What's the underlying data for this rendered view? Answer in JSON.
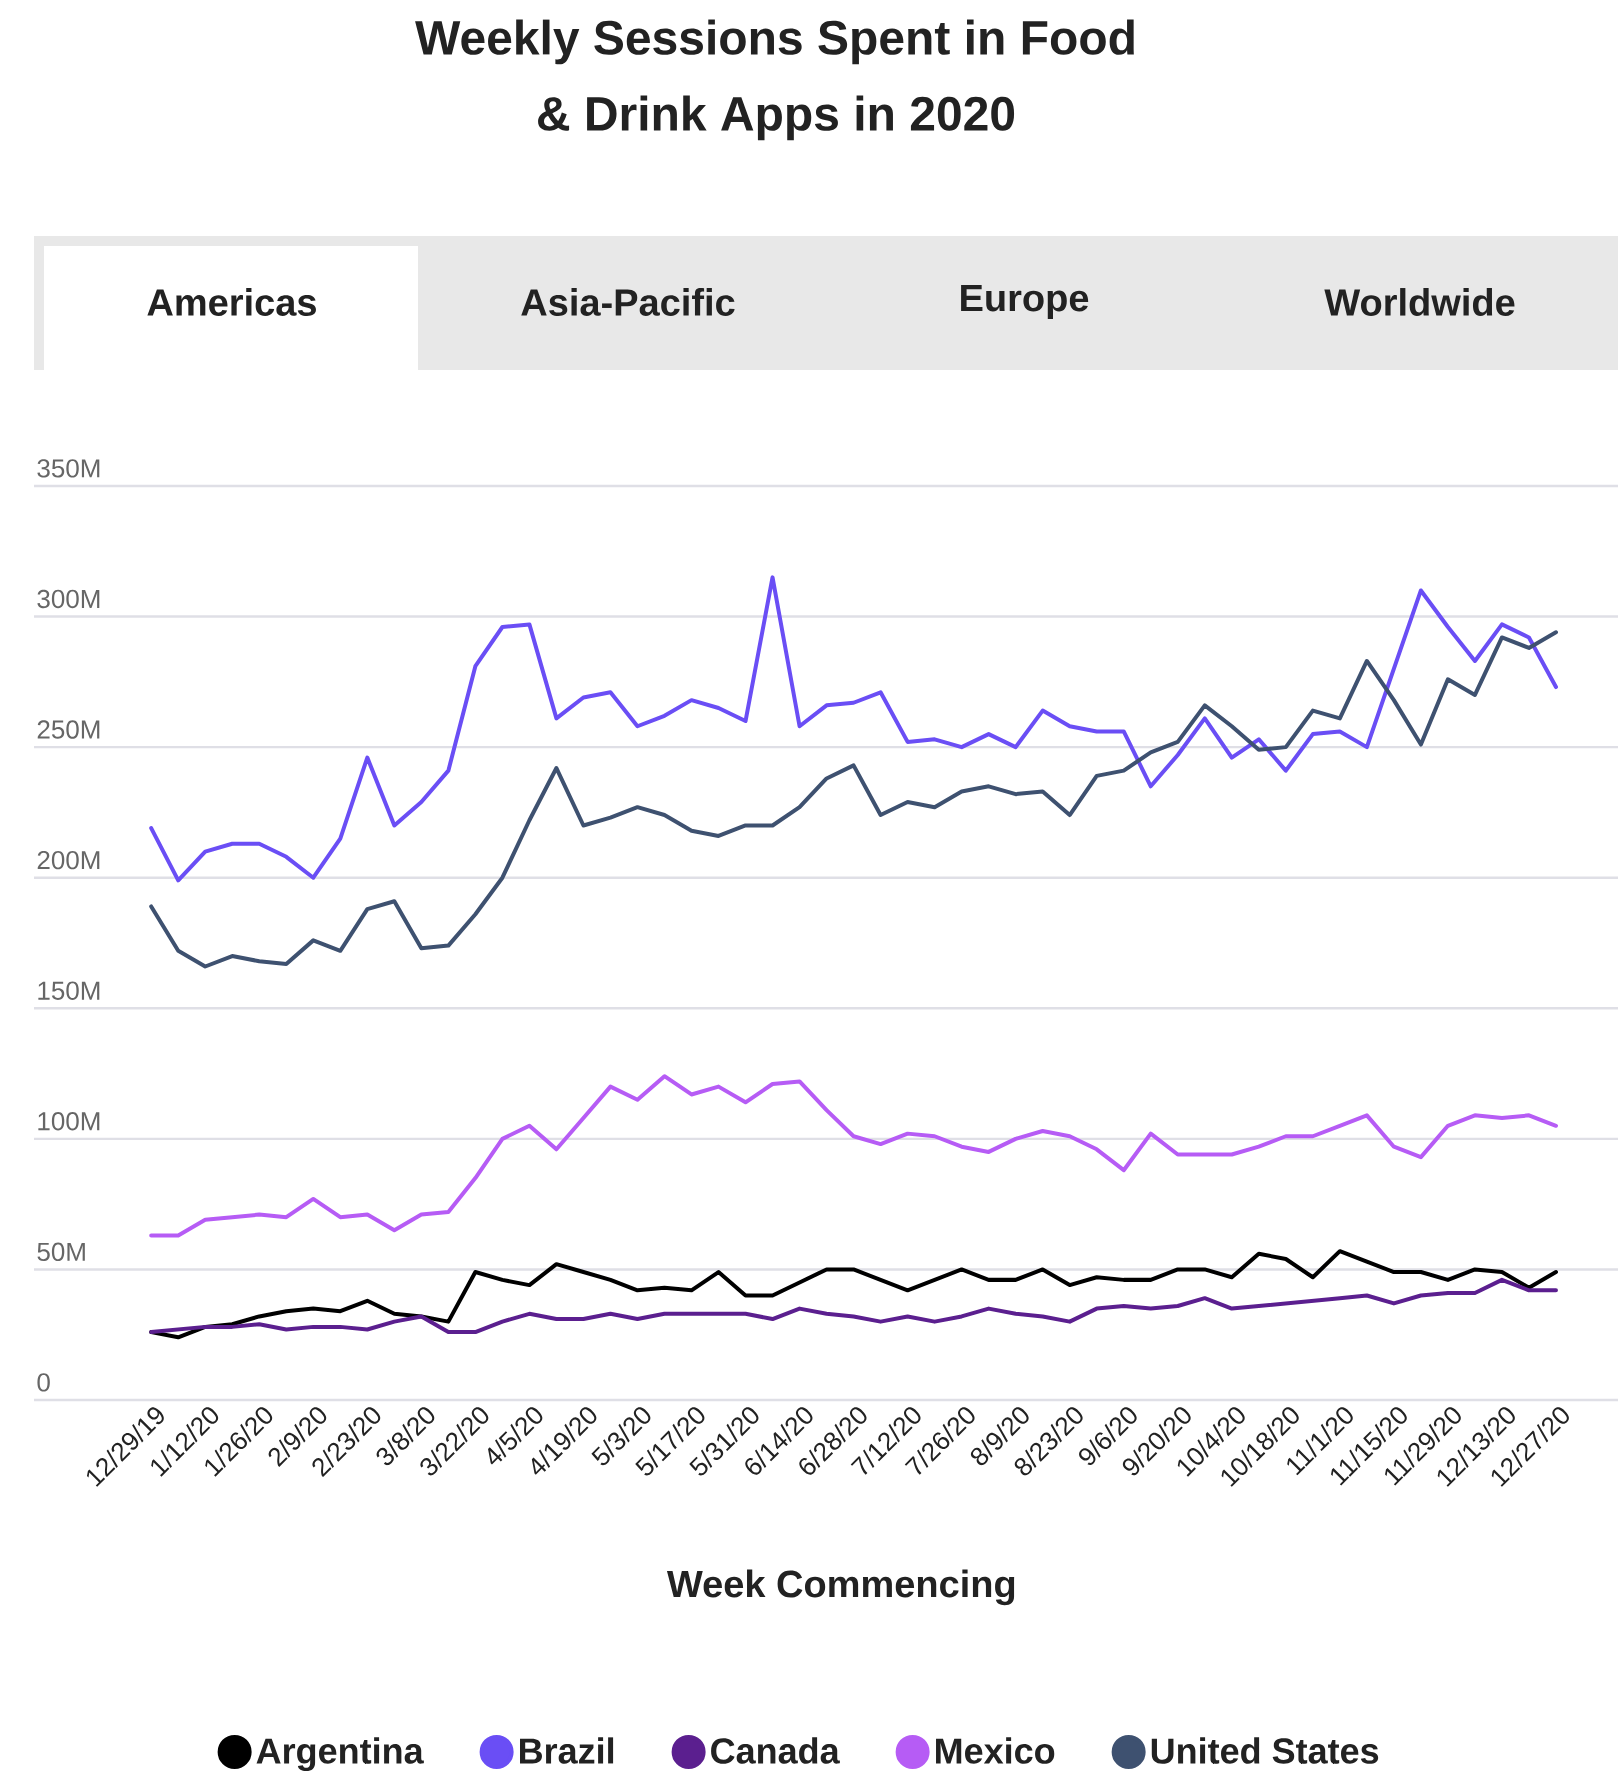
{
  "chart_data": {
    "type": "line",
    "title": "Weekly Sessions Spent in Food\n& Drink Apps in 2020",
    "xlabel": "Week Commencing",
    "annotations": [
      "Americas",
      "Asia-Pacific",
      "Europe",
      "Worldwide"
    ],
    "categories": [
      "12/29/19",
      null,
      "1/12/20",
      null,
      "1/26/20",
      null,
      "2/9/20",
      null,
      "2/23/20",
      null,
      "3/8/20",
      null,
      "3/22/20",
      null,
      "4/5/20",
      null,
      "4/19/20",
      null,
      "5/3/20",
      null,
      "5/17/20",
      null,
      "5/31/20",
      null,
      "6/14/20",
      null,
      "6/28/20",
      null,
      "7/12/20",
      null,
      "7/26/20",
      null,
      "8/9/20",
      null,
      "8/23/20",
      null,
      "9/6/20",
      null,
      "9/20/20",
      null,
      "10/4/20",
      null,
      "10/18/20",
      null,
      "11/1/20",
      null,
      "11/15/20",
      null,
      "11/29/20",
      null,
      "12/13/20",
      null,
      "12/27/20"
    ],
    "series": [
      {
        "name": "Argentina",
        "color": "#000000",
        "values": [
          26,
          24,
          28,
          29,
          32,
          34,
          35,
          34,
          38,
          33,
          32,
          30,
          49,
          46,
          44,
          52,
          49,
          46,
          42,
          43,
          42,
          49,
          40,
          40,
          45,
          50,
          50,
          46,
          42,
          46,
          50,
          46,
          46,
          50,
          44,
          47,
          46,
          46,
          50,
          50,
          47,
          56,
          54,
          47,
          57,
          53,
          49,
          49,
          46,
          50,
          49,
          43,
          49
        ]
      },
      {
        "name": "Brazil",
        "color": "#6a4ef5",
        "values": [
          219,
          199,
          210,
          213,
          213,
          208,
          200,
          215,
          246,
          220,
          229,
          241,
          281,
          296,
          297,
          261,
          269,
          271,
          258,
          262,
          268,
          265,
          260,
          315,
          258,
          266,
          267,
          271,
          252,
          253,
          250,
          255,
          250,
          264,
          258,
          256,
          256,
          235,
          247,
          261,
          246,
          253,
          241,
          255,
          256,
          250,
          280,
          310,
          296,
          283,
          297,
          292,
          273
        ]
      },
      {
        "name": "Canada",
        "color": "#5b1f8f",
        "values": [
          26,
          27,
          28,
          28,
          29,
          27,
          28,
          28,
          27,
          30,
          32,
          26,
          26,
          30,
          33,
          31,
          31,
          33,
          31,
          33,
          33,
          33,
          33,
          31,
          35,
          33,
          32,
          30,
          32,
          30,
          32,
          35,
          33,
          32,
          30,
          35,
          36,
          35,
          36,
          39,
          35,
          36,
          37,
          38,
          39,
          40,
          37,
          40,
          41,
          41,
          46,
          42,
          42
        ]
      },
      {
        "name": "Mexico",
        "color": "#b65cf5",
        "values": [
          63,
          63,
          69,
          70,
          71,
          70,
          77,
          70,
          71,
          65,
          71,
          72,
          85,
          100,
          105,
          96,
          108,
          120,
          115,
          124,
          117,
          120,
          114,
          121,
          122,
          111,
          101,
          98,
          102,
          101,
          97,
          95,
          100,
          103,
          101,
          96,
          88,
          102,
          94,
          94,
          94,
          97,
          101,
          101,
          105,
          109,
          97,
          93,
          105,
          109,
          108,
          109,
          105
        ]
      },
      {
        "name": "United States",
        "color": "#3e5170",
        "values": [
          189,
          172,
          166,
          170,
          168,
          167,
          176,
          172,
          188,
          191,
          173,
          174,
          186,
          200,
          222,
          242,
          220,
          223,
          227,
          224,
          218,
          216,
          220,
          220,
          227,
          238,
          243,
          224,
          229,
          227,
          233,
          235,
          232,
          233,
          224,
          239,
          241,
          248,
          252,
          266,
          258,
          249,
          250,
          264,
          261,
          283,
          268,
          251,
          276,
          270,
          292,
          288,
          294
        ]
      }
    ],
    "ylim": [
      0,
      350
    ],
    "yticks": [
      0,
      {
        "value": 50,
        "label": "50M"
      },
      {
        "value": 100,
        "label": "100M"
      },
      {
        "value": 150,
        "label": "150M"
      },
      {
        "value": 200,
        "label": "200M"
      },
      {
        "value": 250,
        "label": "250M"
      },
      {
        "value": 300,
        "label": "300M"
      },
      {
        "value": 350,
        "label": "350M"
      }
    ],
    "grid": "y",
    "legend": "bottom",
    "marker": "none",
    "line_style": "solid"
  }
}
